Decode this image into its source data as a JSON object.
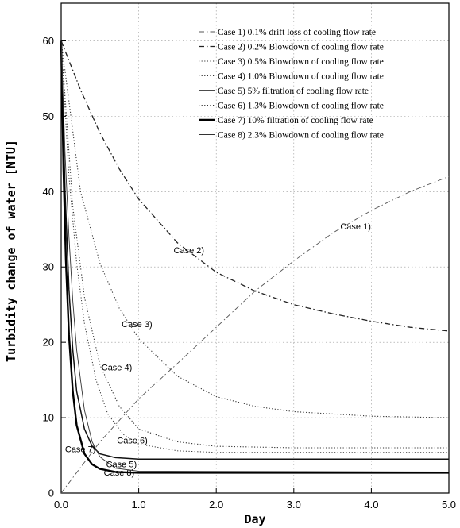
{
  "chart_data": {
    "type": "line",
    "xlabel": "Day",
    "ylabel": "Turbidity change of water [NTU]",
    "xlim": [
      0,
      5
    ],
    "ylim": [
      0,
      65
    ],
    "x_ticks": [
      "0.0",
      "1.0",
      "2.0",
      "3.0",
      "4.0",
      "5.0"
    ],
    "y_ticks": [
      "0",
      "10",
      "20",
      "30",
      "40",
      "50",
      "60"
    ],
    "grid": true,
    "legend_position": "top-right",
    "series": [
      {
        "name": "Case 1) 0.1% drift loss of cooling flow rate",
        "label": "Case 1)",
        "style": "dashdot",
        "width": 0.9,
        "color": "#555555",
        "x": [
          0,
          0.5,
          1.0,
          1.5,
          2.0,
          2.5,
          3.0,
          3.5,
          4.0,
          4.5,
          5.0
        ],
        "y": [
          0.0,
          6.8,
          12.5,
          17.2,
          22.0,
          26.8,
          30.8,
          34.5,
          37.5,
          40.0,
          42.0
        ]
      },
      {
        "name": "Case 2) 0.2% Blowdown of cooling flow rate",
        "label": "Case 2)",
        "style": "dashdot",
        "width": 1.3,
        "color": "#222222",
        "x": [
          0,
          0.25,
          0.5,
          0.75,
          1.0,
          1.5,
          2.0,
          2.5,
          3.0,
          3.5,
          4.0,
          4.5,
          5.0
        ],
        "y": [
          60.0,
          53.5,
          47.8,
          43.0,
          39.0,
          33.2,
          29.3,
          26.8,
          25.0,
          23.8,
          22.8,
          22.0,
          21.5
        ]
      },
      {
        "name": "Case 3) 0.5% Blowdown of cooling flow rate",
        "label": "Case 3)",
        "style": "dotted",
        "width": 1.1,
        "color": "#333333",
        "x": [
          0,
          0.25,
          0.5,
          0.75,
          1.0,
          1.5,
          2.0,
          2.5,
          3.0,
          4.0,
          5.0
        ],
        "y": [
          60.0,
          40.0,
          30.5,
          24.5,
          20.5,
          15.5,
          12.8,
          11.5,
          10.8,
          10.2,
          10.0
        ]
      },
      {
        "name": "Case 4) 1.0% Blowdown of cooling flow rate",
        "label": "Case 4)",
        "style": "dotted",
        "width": 1.1,
        "color": "#333333",
        "x": [
          0,
          0.15,
          0.3,
          0.5,
          0.75,
          1.0,
          1.5,
          2.0,
          3.0,
          5.0
        ],
        "y": [
          60.0,
          38.0,
          26.0,
          17.0,
          11.5,
          8.5,
          6.8,
          6.2,
          6.0,
          6.0
        ]
      },
      {
        "name": "Case 5) 5% filtration of cooling flow rate",
        "label": "Case 5)",
        "style": "solid",
        "width": 1.5,
        "color": "#111111",
        "x": [
          0,
          0.05,
          0.1,
          0.15,
          0.2,
          0.3,
          0.4,
          0.5,
          0.7,
          1.0,
          2.0,
          5.0
        ],
        "y": [
          60.0,
          40.0,
          27.0,
          19.0,
          13.5,
          8.5,
          6.2,
          5.2,
          4.7,
          4.5,
          4.5,
          4.5
        ]
      },
      {
        "name": "Case 6) 1.3% Blowdown of cooling flow rate",
        "label": "Case 6)",
        "style": "dotted",
        "width": 1.0,
        "color": "#333333",
        "x": [
          0,
          0.1,
          0.2,
          0.3,
          0.45,
          0.6,
          0.8,
          1.0,
          1.5,
          2.0,
          5.0
        ],
        "y": [
          60.0,
          42.0,
          30.5,
          22.5,
          15.0,
          10.5,
          7.8,
          6.5,
          5.6,
          5.4,
          5.4
        ]
      },
      {
        "name": "Case 7) 10% filtration of cooling flow rate",
        "label": "Case 7)",
        "style": "solid",
        "width": 2.4,
        "color": "#000000",
        "x": [
          0,
          0.03,
          0.06,
          0.1,
          0.15,
          0.2,
          0.3,
          0.4,
          0.5,
          0.7,
          1.0,
          5.0
        ],
        "y": [
          60.0,
          43.0,
          31.0,
          21.0,
          13.5,
          9.0,
          5.2,
          3.8,
          3.2,
          2.8,
          2.7,
          2.7
        ]
      },
      {
        "name": "Case 8) 2.3% Blowdown of cooling flow rate",
        "label": "Case 8)",
        "style": "solid",
        "width": 0.9,
        "color": "#333333",
        "x": [
          0,
          0.05,
          0.1,
          0.15,
          0.2,
          0.3,
          0.4,
          0.5,
          0.7,
          1.0,
          5.0
        ],
        "y": [
          60.0,
          45.0,
          34.0,
          25.5,
          19.0,
          11.0,
          6.8,
          4.8,
          3.3,
          2.9,
          2.8
        ]
      }
    ]
  }
}
